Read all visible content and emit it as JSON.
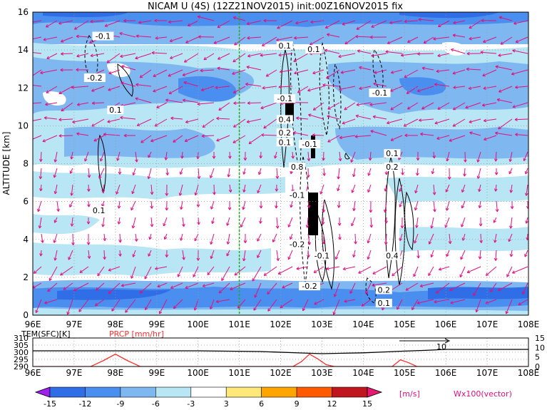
{
  "title": "NICAM U (4S) (12Z21NOV2015) init:00Z16NOV2015 fix",
  "chart_data": [
    {
      "type": "heatmap",
      "description_variable": "zonal wind U",
      "ylabel": "ALTITUDE [km]",
      "x_ticks": [
        "96E",
        "97E",
        "98E",
        "99E",
        "100E",
        "101E",
        "102E",
        "103E",
        "104E",
        "105E",
        "106E",
        "107E",
        "108E"
      ],
      "x_range": [
        96,
        108
      ],
      "y_ticks": [
        "0",
        "2",
        "4",
        "6",
        "8",
        "10",
        "12",
        "14",
        "16"
      ],
      "y_range": [
        0,
        16
      ],
      "grid": true,
      "reference_line_lon": 101,
      "contour_labels": [
        {
          "text": "-0.1",
          "lon": 97.7,
          "alt": 14.7
        },
        {
          "text": "-0.2",
          "lon": 97.5,
          "alt": 12.5
        },
        {
          "text": "0.1",
          "lon": 98.0,
          "alt": 10.8
        },
        {
          "text": "0.1",
          "lon": 97.6,
          "alt": 5.5
        },
        {
          "text": "0.1",
          "lon": 102.1,
          "alt": 14.2
        },
        {
          "text": "0.1",
          "lon": 102.8,
          "alt": 14.0
        },
        {
          "text": "-0.1",
          "lon": 102.1,
          "alt": 11.4
        },
        {
          "text": "0.4",
          "lon": 102.1,
          "alt": 10.3
        },
        {
          "text": "0.2",
          "lon": 102.1,
          "alt": 9.6
        },
        {
          "text": "0.1",
          "lon": 102.1,
          "alt": 9.1
        },
        {
          "text": "-0.1",
          "lon": 102.7,
          "alt": 9.0
        },
        {
          "text": "-0.1",
          "lon": 104.4,
          "alt": 11.7
        },
        {
          "text": "0.8",
          "lon": 102.4,
          "alt": 7.8
        },
        {
          "text": "-0.1",
          "lon": 102.4,
          "alt": 6.3
        },
        {
          "text": "0.1",
          "lon": 104.7,
          "alt": 8.5
        },
        {
          "text": "0.2",
          "lon": 104.7,
          "alt": 7.8
        },
        {
          "text": "-0.2",
          "lon": 102.4,
          "alt": 3.7
        },
        {
          "text": "-0.1",
          "lon": 103.0,
          "alt": 3.1
        },
        {
          "text": "0.4",
          "lon": 104.7,
          "alt": 3.1
        },
        {
          "text": "0.2",
          "lon": 104.5,
          "alt": 1.3
        },
        {
          "text": "0.1",
          "lon": 104.5,
          "alt": 0.6
        },
        {
          "text": "-0.2",
          "lon": 102.7,
          "alt": 1.5
        }
      ]
    },
    {
      "type": "line",
      "x_ticks": [
        "96E",
        "97E",
        "98E",
        "99E",
        "100E",
        "101E",
        "102E",
        "103E",
        "104E",
        "105E",
        "106E",
        "107E",
        "108E"
      ],
      "x_range": [
        96,
        108
      ],
      "left_axis_label": "TEM(SFC)[K]",
      "left_ticks": [
        "290",
        "295",
        "300",
        "305",
        "310"
      ],
      "left_range": [
        290,
        310
      ],
      "right_axis_label": "PRCP [mm/hr]",
      "right_ticks": [
        "0",
        "5",
        "10",
        "15"
      ],
      "right_range": [
        0,
        15
      ],
      "series": [
        {
          "name": "TEM(SFC)[K]",
          "color": "#000000",
          "x": [
            96,
            98,
            100,
            101.5,
            102.5,
            103,
            103.5,
            104,
            104.5,
            105,
            105.5,
            106,
            107,
            108
          ],
          "y": [
            301,
            301,
            301,
            300.5,
            299.5,
            299,
            299.3,
            299.6,
            300.2,
            300.8,
            301.3,
            302,
            302,
            302
          ]
        },
        {
          "name": "PRCP [mm/hr]",
          "color": "#ff3030",
          "x": [
            96,
            97.4,
            97.7,
            98.0,
            98.3,
            98.6,
            102.3,
            102.5,
            102.7,
            102.9,
            103.1,
            103.3,
            104.7,
            104.9,
            105.1,
            105.3,
            108
          ],
          "y": [
            0,
            0,
            3,
            6.5,
            3,
            0,
            0,
            2.5,
            6.5,
            4,
            1,
            0,
            0,
            3.5,
            2,
            0,
            0
          ]
        }
      ],
      "annotation": "10"
    }
  ],
  "colorbar": {
    "ticks": [
      "-15",
      "-12",
      "-9",
      "-6",
      "-3",
      "3",
      "6",
      "9",
      "12",
      "15"
    ],
    "colors": [
      "#a020f0",
      "#2f6ee6",
      "#4a8ff0",
      "#7fb8f0",
      "#b8e6f5",
      "#ffffff",
      "#ffe87a",
      "#ffa500",
      "#ff5a00",
      "#c0161f",
      "#e6196e"
    ],
    "unit": "[m/s]"
  },
  "vector_label": "Wx100(vector)"
}
